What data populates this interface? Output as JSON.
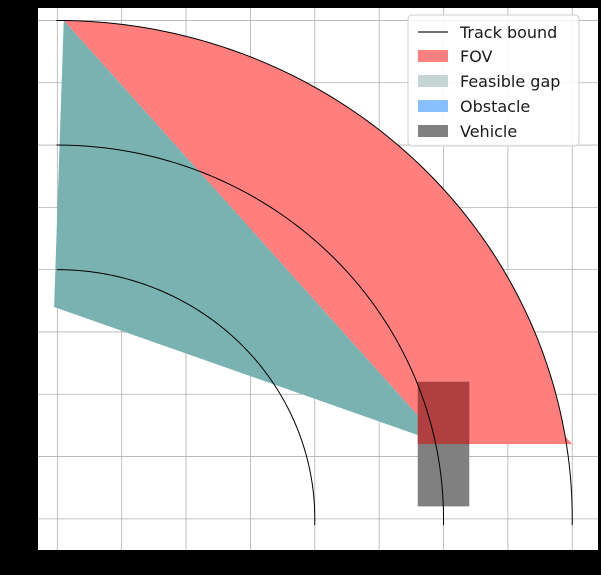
{
  "chart_data": {
    "type": "area",
    "title": "",
    "xlabel": "",
    "ylabel": "",
    "grid": true,
    "legend_placement": "top-right",
    "xlim": [
      -0.3,
      8.4
    ],
    "ylim": [
      -0.5,
      8.2
    ],
    "colors": {
      "plot_background": "#ffffff",
      "grid": "#b0b0b0",
      "track": "#000000",
      "fov": "#ff7f7f",
      "feasible_gap": "#c6d5d3",
      "feasible_gap_fill": "#79b2b0",
      "obstacle": "#88c0ff",
      "vehicle": "#808080",
      "vehicle_overlap": "#b04040"
    },
    "legend": [
      {
        "key": "track",
        "label": "Track bound",
        "kind": "line"
      },
      {
        "key": "fov",
        "label": "FOV",
        "kind": "patch"
      },
      {
        "key": "feasible_gap",
        "label": "Feasible gap",
        "kind": "patch"
      },
      {
        "key": "obstacle",
        "label": "Obstacle",
        "kind": "patch"
      },
      {
        "key": "vehicle",
        "label": "Vehicle",
        "kind": "patch"
      }
    ],
    "track_bounds": [
      {
        "name": "inner",
        "center": [
          0,
          0
        ],
        "radius": 4
      },
      {
        "name": "middle",
        "center": [
          0,
          0
        ],
        "radius": 6
      },
      {
        "name": "outer",
        "center": [
          0,
          0
        ],
        "radius": 8
      }
    ],
    "fov": {
      "apex": [
        6.0,
        1.2
      ],
      "inner_points": [
        [
          4.0,
          1.2
        ]
      ],
      "outer_arc": {
        "radius": 8,
        "from": [
          8.0,
          1.2
        ],
        "to": [
          0.1,
          8.0
        ]
      }
    },
    "feasible_gap": {
      "polygon": [
        [
          6.0,
          1.2
        ],
        [
          0.1,
          8.0
        ],
        [
          -0.05,
          3.4
        ]
      ]
    },
    "vehicle": {
      "center_x": 6.0,
      "x_range": [
        5.6,
        6.4
      ],
      "y_range": [
        0.2,
        2.2
      ]
    }
  }
}
